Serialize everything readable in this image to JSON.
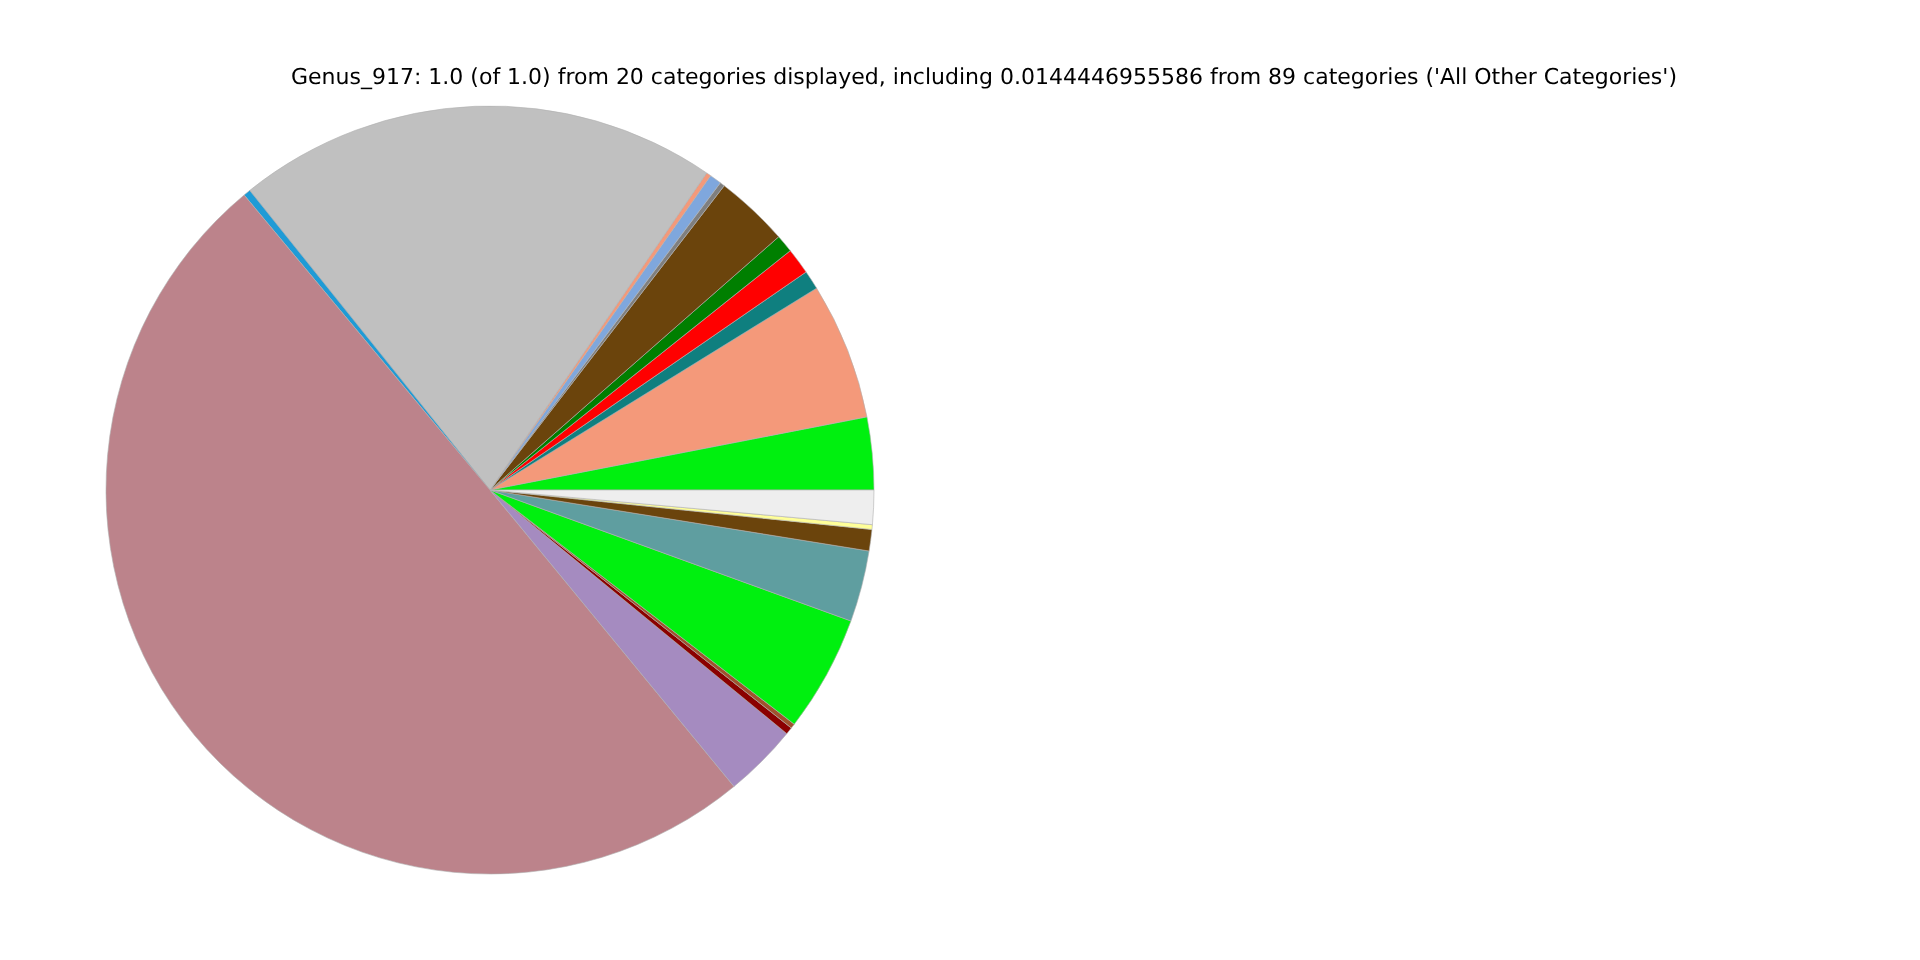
{
  "chart_data": {
    "type": "pie",
    "title": "Genus_917: 1.0 (of 1.0) from 20 categories displayed, including 0.0144446955586 from 89 categories ('All Other Categories')",
    "categories": [
      null,
      null,
      null,
      null,
      null,
      null,
      null,
      null,
      null,
      null,
      null,
      null,
      null,
      null,
      null,
      null,
      null,
      null,
      null,
      null
    ],
    "values": [
      3.05,
      5.76,
      0.8,
      1.1,
      0.75,
      3.1,
      0.2,
      0.5,
      0.2,
      20.3,
      0.3,
      49.9,
      3.1,
      0.3,
      0.2,
      4.9,
      3.0,
      0.9,
      0.2,
      1.44
    ],
    "colors": [
      "#00f00f",
      "#f4997a",
      "#0f7f7f",
      "#ff0000",
      "#007f00",
      "#6b440c",
      "#7f7f7f",
      "#7fa7dd",
      "#f4997a",
      "#c0c0c0",
      "#1f9bd6",
      "#bc838b",
      "#a58bc0",
      "#8b0000",
      "#a0522d",
      "#00f00f",
      "#5f9ea0",
      "#6b440c",
      "#ffff99",
      "#eeeeee"
    ]
  }
}
